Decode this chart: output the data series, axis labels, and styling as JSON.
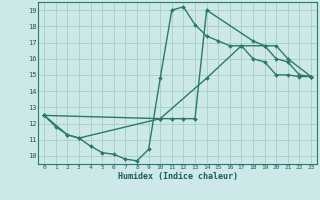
{
  "xlabel": "Humidex (Indice chaleur)",
  "bg_color": "#cce8e8",
  "grid_color": "#aad0d0",
  "line_color": "#2a7a6a",
  "xlim": [
    -0.5,
    23.5
  ],
  "ylim": [
    9.5,
    19.5
  ],
  "xticks": [
    0,
    1,
    2,
    3,
    4,
    5,
    6,
    7,
    8,
    9,
    10,
    11,
    12,
    13,
    14,
    15,
    16,
    17,
    18,
    19,
    20,
    21,
    22,
    23
  ],
  "yticks": [
    10,
    11,
    12,
    13,
    14,
    15,
    16,
    17,
    18,
    19
  ],
  "line1_x": [
    0,
    1,
    2,
    3,
    4,
    5,
    6,
    7,
    8,
    9,
    10,
    11,
    12,
    13,
    14,
    15,
    16,
    17,
    18,
    19,
    20,
    21,
    22,
    23
  ],
  "line1_y": [
    12.5,
    11.8,
    11.3,
    11.1,
    10.6,
    10.2,
    10.1,
    9.8,
    9.7,
    10.4,
    14.8,
    19.0,
    19.2,
    18.1,
    17.4,
    17.1,
    16.8,
    16.8,
    16.0,
    15.8,
    15.0,
    15.0,
    14.9,
    14.9
  ],
  "line2_x": [
    0,
    2,
    3,
    10,
    11,
    12,
    13,
    14,
    18,
    19,
    20,
    21,
    23
  ],
  "line2_y": [
    12.5,
    11.3,
    11.1,
    12.3,
    12.3,
    12.3,
    12.3,
    19.0,
    17.1,
    16.8,
    16.8,
    16.0,
    14.9
  ],
  "line3_x": [
    0,
    10,
    14,
    17,
    19,
    20,
    21,
    22,
    23
  ],
  "line3_y": [
    12.5,
    12.3,
    14.8,
    16.8,
    16.8,
    16.0,
    15.8,
    15.0,
    14.9
  ]
}
